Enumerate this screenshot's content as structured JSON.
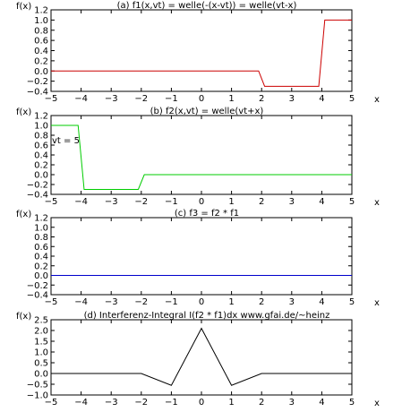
{
  "chart_data": [
    {
      "type": "line",
      "title": "(a) f1(x,vt) = welle(-(x-vt)) = welle(vt-x)",
      "ylabel": "f(x)",
      "xlabel": "x",
      "xlim": [
        -5,
        5
      ],
      "ylim": [
        -0.4,
        1.2
      ],
      "xticks": [
        -5,
        -4,
        -3,
        -2,
        -1,
        0,
        1,
        2,
        3,
        4,
        5
      ],
      "xtick_labels": [
        "−5",
        "−4",
        "−3",
        "−2",
        "−1",
        "0",
        "1",
        "2",
        "3",
        "4",
        "5"
      ],
      "yticks": [
        1.2,
        1.0,
        0.8,
        0.6,
        0.4,
        0.2,
        0.0,
        -0.2,
        -0.4
      ],
      "ytick_labels": [
        "1.2",
        "1.0",
        "0.8",
        "0.6",
        "0.4",
        "0.2",
        "0.0",
        "−0.2",
        "−0.4"
      ],
      "grid": false,
      "annotations": [],
      "series": [
        {
          "color": "#cc0000",
          "x": [
            -5,
            1.9,
            2.1,
            3.9,
            4.1,
            5
          ],
          "y": [
            0,
            0,
            -0.3,
            -0.3,
            1.0,
            1.0
          ]
        }
      ]
    },
    {
      "type": "line",
      "title": "(b) f2(x,vt) = welle(vt+x)",
      "ylabel": "f(x)",
      "xlabel": "x",
      "xlim": [
        -5,
        5
      ],
      "ylim": [
        -0.4,
        1.2
      ],
      "xticks": [
        -5,
        -4,
        -3,
        -2,
        -1,
        0,
        1,
        2,
        3,
        4,
        5
      ],
      "xtick_labels": [
        "−5",
        "−4",
        "−3",
        "−2",
        "−1",
        "0",
        "1",
        "2",
        "3",
        "4",
        "5"
      ],
      "yticks": [
        1.2,
        1.0,
        0.8,
        0.6,
        0.4,
        0.2,
        0.0,
        -0.2,
        -0.4
      ],
      "ytick_labels": [
        "1.2",
        "1.0",
        "0.8",
        "0.6",
        "0.4",
        "0.2",
        "0.0",
        "−0.2",
        "−0.4"
      ],
      "grid": false,
      "annotations": [
        "vt = 5"
      ],
      "series": [
        {
          "color": "#00cc00",
          "x": [
            -5,
            -4.1,
            -3.9,
            -2.1,
            -1.9,
            5
          ],
          "y": [
            1.0,
            1.0,
            -0.3,
            -0.3,
            0,
            0
          ]
        }
      ]
    },
    {
      "type": "line",
      "title": "(c) f3 = f2 * f1",
      "ylabel": "f(x)",
      "xlabel": "x",
      "xlim": [
        -5,
        5
      ],
      "ylim": [
        -0.4,
        1.2
      ],
      "xticks": [
        -5,
        -4,
        -3,
        -2,
        -1,
        0,
        1,
        2,
        3,
        4,
        5
      ],
      "xtick_labels": [
        "−5",
        "−4",
        "−3",
        "−2",
        "−1",
        "0",
        "1",
        "2",
        "3",
        "4",
        "5"
      ],
      "yticks": [
        1.2,
        1.0,
        0.8,
        0.6,
        0.4,
        0.2,
        0.0,
        -0.2,
        -0.4
      ],
      "ytick_labels": [
        "1.2",
        "1.0",
        "0.8",
        "0.6",
        "0.4",
        "0.2",
        "0.0",
        "−0.2",
        "−0.4"
      ],
      "grid": false,
      "annotations": [],
      "series": [
        {
          "color": "#0000cc",
          "x": [
            -5,
            5
          ],
          "y": [
            0,
            0
          ]
        }
      ]
    },
    {
      "type": "line",
      "title": "(d) Interferenz-Integral I(f2 * f1)dx   www.gfai.de/~heinz",
      "ylabel": "f(x)",
      "xlabel": "x",
      "xlim": [
        -5,
        5
      ],
      "ylim": [
        -1.0,
        2.5
      ],
      "xticks": [
        -5,
        -4,
        -3,
        -2,
        -1,
        0,
        1,
        2,
        3,
        4,
        5
      ],
      "xtick_labels": [
        "−5",
        "−4",
        "−3",
        "−2",
        "−1",
        "0",
        "1",
        "2",
        "3",
        "4",
        "5"
      ],
      "yticks": [
        2.5,
        2.0,
        1.5,
        1.0,
        0.5,
        0.0,
        -0.5,
        -1.0
      ],
      "ytick_labels": [
        "2.5",
        "2.0",
        "1.5",
        "1.0",
        "0.5",
        "0.0",
        "−0.5",
        "−1.0"
      ],
      "grid": false,
      "annotations": [],
      "series": [
        {
          "color": "#000000",
          "x": [
            -5,
            -2,
            -1,
            0,
            1,
            2,
            5
          ],
          "y": [
            0,
            0,
            -0.55,
            2.1,
            -0.55,
            0,
            0
          ]
        }
      ]
    }
  ]
}
